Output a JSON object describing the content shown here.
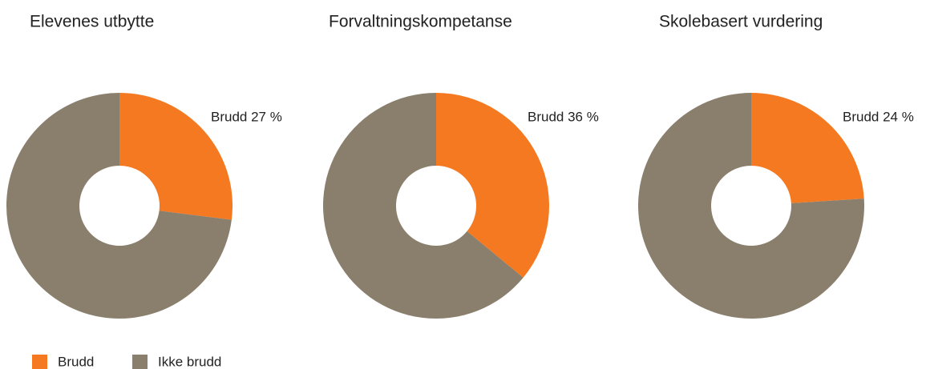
{
  "chart_data": [
    {
      "type": "pie",
      "title": "Elevenes utbytte",
      "categories": [
        "Brudd",
        "Ikke brudd"
      ],
      "values": [
        27,
        73
      ],
      "value_labels": [
        "Brudd 27 %",
        null
      ],
      "colors": [
        "#f47920",
        "#8a7f6d"
      ]
    },
    {
      "type": "pie",
      "title": "Forvaltningskompetanse",
      "categories": [
        "Brudd",
        "Ikke brudd"
      ],
      "values": [
        36,
        64
      ],
      "value_labels": [
        "Brudd 36 %",
        null
      ],
      "colors": [
        "#f47920",
        "#8a7f6d"
      ]
    },
    {
      "type": "pie",
      "title": "Skolebasert vurdering",
      "categories": [
        "Brudd",
        "Ikke brudd"
      ],
      "values": [
        24,
        76
      ],
      "value_labels": [
        "Brudd 24 %",
        null
      ],
      "colors": [
        "#f47920",
        "#8a7f6d"
      ]
    }
  ]
}
